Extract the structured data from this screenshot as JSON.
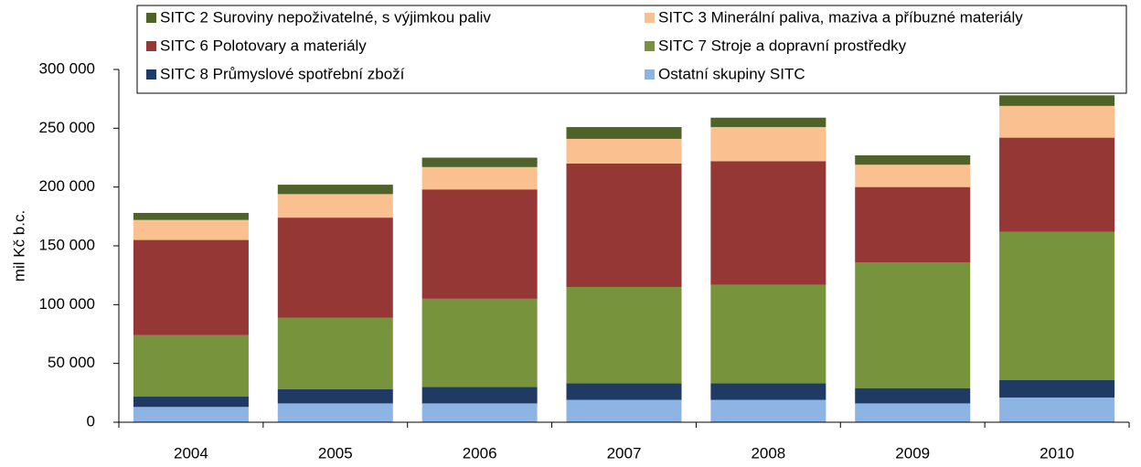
{
  "chart_data": {
    "type": "stacked_bar",
    "y_label": "mil Kč b.c.",
    "categories": [
      "2004",
      "2005",
      "2006",
      "2007",
      "2008",
      "2009",
      "2010"
    ],
    "series": [
      {
        "name": "Ostatní skupiny SITC",
        "color": "#8eb4e3",
        "values": [
          13000,
          16000,
          16000,
          19000,
          19000,
          16000,
          21000
        ]
      },
      {
        "name": "SITC 8 Průmyslové spotřební zboží",
        "color": "#1f3b63",
        "values": [
          9000,
          12000,
          14000,
          14000,
          14000,
          13000,
          15000
        ]
      },
      {
        "name": "SITC 7 Stroje a dopravní prostředky",
        "color": "#77933c",
        "values": [
          52000,
          61000,
          75000,
          82000,
          84000,
          107000,
          126000
        ]
      },
      {
        "name": "SITC 6 Polotovary a materiály",
        "color": "#953735",
        "values": [
          81000,
          85000,
          93000,
          105000,
          105000,
          64000,
          80000
        ]
      },
      {
        "name": "SITC 3 Minerální paliva, maziva a příbuzné materiály",
        "color": "#fac090",
        "values": [
          17000,
          20000,
          19000,
          21000,
          29000,
          19000,
          27000
        ]
      },
      {
        "name": "SITC 2 Suroviny nepoživatelné, s výjimkou paliv",
        "color": "#4f6228",
        "values": [
          6000,
          8000,
          8000,
          10000,
          8000,
          8000,
          9000
        ]
      }
    ],
    "ylim": [
      0,
      300000
    ],
    "yticks": [
      0,
      {
        "value": 50000,
        "label": "50 000"
      },
      {
        "value": 100000,
        "label": "100 000"
      },
      {
        "value": 150000,
        "label": "150 000"
      },
      {
        "value": 200000,
        "label": "200 000"
      },
      {
        "value": 250000,
        "label": "250 000"
      },
      {
        "value": 300000,
        "label": "300 000"
      }
    ],
    "legend": "top"
  }
}
